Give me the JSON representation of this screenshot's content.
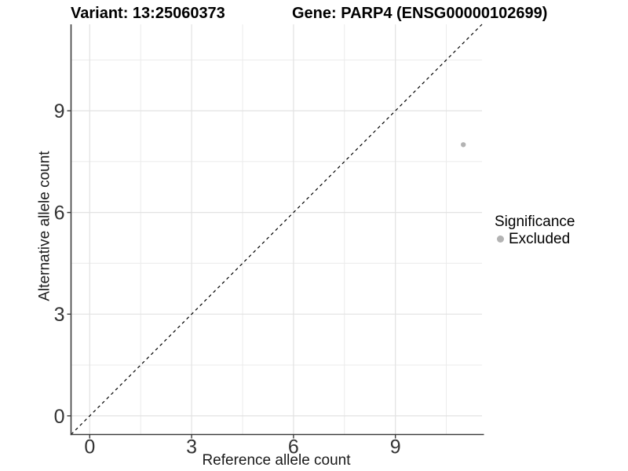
{
  "titles": {
    "left": "Variant: 13:25060373",
    "right": "Gene: PARP4 (ENSG00000102699)"
  },
  "chart_data": {
    "type": "scatter",
    "xlabel": "Reference allele count",
    "ylabel": "Alternative allele count",
    "xlim": [
      -0.55,
      11.55
    ],
    "ylim": [
      -0.55,
      11.55
    ],
    "x_ticks": [
      0,
      3,
      6,
      9
    ],
    "y_ticks": [
      0,
      3,
      6,
      9
    ],
    "x_minor_gridlines": [
      1.5,
      4.5,
      7.5,
      10.5
    ],
    "y_minor_gridlines": [
      1.5,
      4.5,
      7.5,
      10.5
    ],
    "grid": true,
    "legend_position": "right",
    "series": [
      {
        "name": "Excluded",
        "color": "#b3b3b3",
        "points": [
          {
            "x": 11,
            "y": 8
          }
        ]
      }
    ],
    "reference_line": {
      "slope": 1,
      "intercept": 0,
      "style": "dashed",
      "color": "#000000"
    }
  },
  "legend": {
    "title": "Significance",
    "items": [
      {
        "label": "Excluded",
        "color": "#b3b3b3",
        "marker": "circle"
      }
    ]
  },
  "colors": {
    "background": "#ffffff",
    "grid_major": "#e2e2e2",
    "grid_minor": "#ebebeb",
    "axis_line": "#3d3d3d",
    "tick_label": "#333333",
    "title_text": "#000000"
  }
}
